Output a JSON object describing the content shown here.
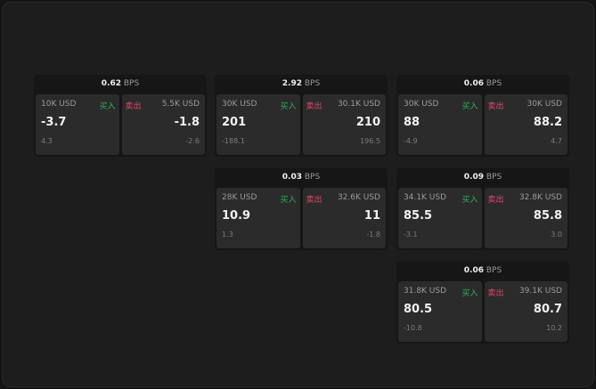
{
  "unit": "BPS",
  "buy_label": "买入",
  "sell_label": "卖出",
  "colors": {
    "buy": "#2fae5f",
    "sell": "#e0486f"
  },
  "widgets": [
    {
      "spread": "0.62",
      "buy": {
        "qty": "10K USD",
        "price": "-3.7",
        "change": "4.3"
      },
      "sell": {
        "qty": "5.5K USD",
        "price": "-1.8",
        "change": "-2.6"
      }
    },
    {
      "spread": "2.92",
      "buy": {
        "qty": "30K USD",
        "price": "201",
        "change": "-188.1"
      },
      "sell": {
        "qty": "30.1K USD",
        "price": "210",
        "change": "196.5"
      }
    },
    {
      "spread": "0.06",
      "buy": {
        "qty": "30K USD",
        "price": "88",
        "change": "-4.9"
      },
      "sell": {
        "qty": "30K USD",
        "price": "88.2",
        "change": "4.7"
      }
    },
    {
      "spread": "0.03",
      "buy": {
        "qty": "28K USD",
        "price": "10.9",
        "change": "1.3"
      },
      "sell": {
        "qty": "32.6K USD",
        "price": "11",
        "change": "-1.8"
      }
    },
    {
      "spread": "0.09",
      "buy": {
        "qty": "34.1K USD",
        "price": "85.5",
        "change": "-3.1"
      },
      "sell": {
        "qty": "32.8K USD",
        "price": "85.8",
        "change": "3.0"
      }
    },
    {
      "spread": "0.06",
      "buy": {
        "qty": "31.8K USD",
        "price": "80.5",
        "change": "-10.8"
      },
      "sell": {
        "qty": "39.1K USD",
        "price": "80.7",
        "change": "10.2"
      }
    }
  ]
}
